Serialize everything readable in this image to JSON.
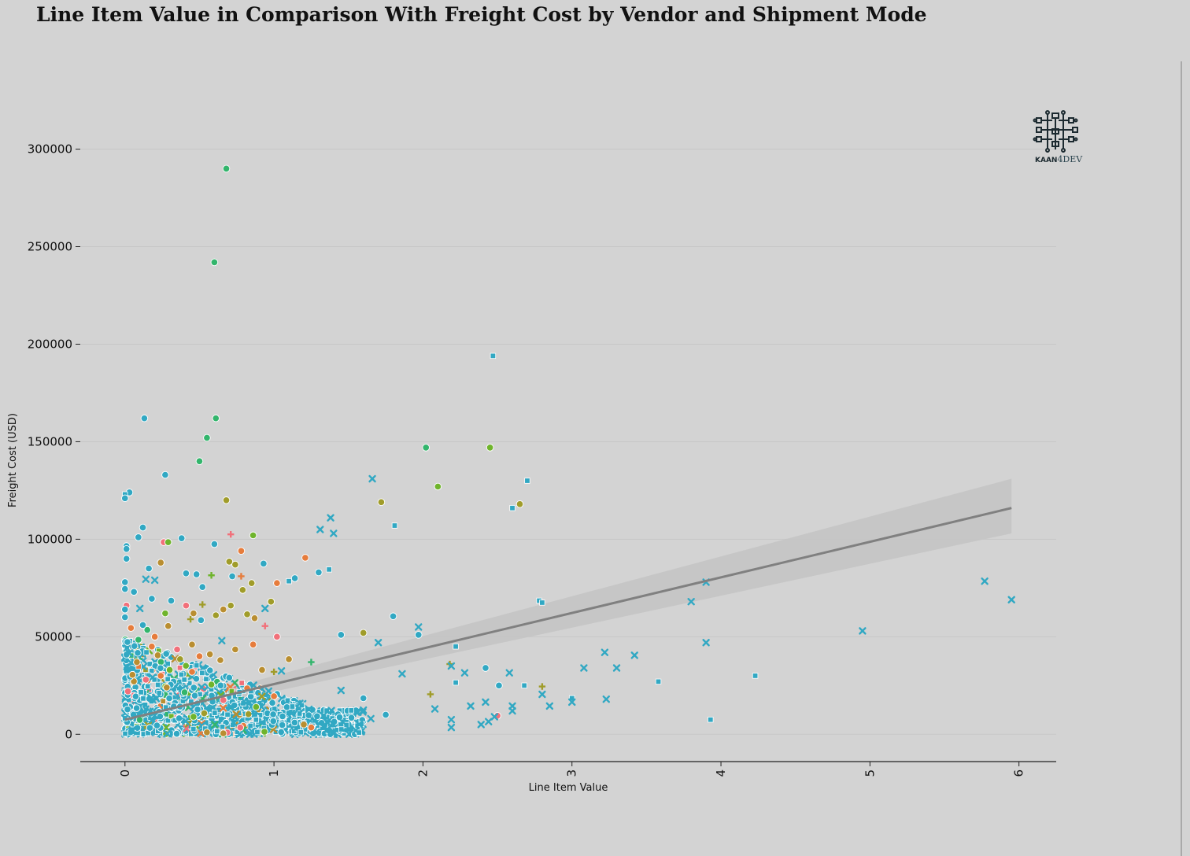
{
  "title": "Line Item Value in Comparison With Freight Cost by Vendor and Shipment Mode",
  "logo": {
    "brand_left": "KAAN",
    "brand_right": "4DEV"
  },
  "colors": {
    "background": "#d3d3d3",
    "grid": "#c7c7c7",
    "regression_line": "#808080",
    "confidence_band": "#c4c4c4",
    "palette": [
      "#31a8c3",
      "#33b56c",
      "#6fb42c",
      "#a09c2a",
      "#b98e31",
      "#e67c3c",
      "#f1707a"
    ]
  },
  "chart_data": {
    "type": "scatter",
    "title": "Line Item Value in Comparison With Freight Cost by Vendor and Shipment Mode",
    "xlabel": "Line Item Value",
    "ylabel": "Freight Cost (USD)",
    "xlim": [
      -0.3,
      6.25
    ],
    "ylim": [
      -14000,
      345000
    ],
    "x_ticks": [
      0,
      1,
      2,
      3,
      4,
      5,
      6
    ],
    "y_ticks": [
      0,
      50000,
      100000,
      150000,
      200000,
      250000,
      300000
    ],
    "x_tick_labels": [
      "0",
      "1",
      "2",
      "3",
      "4",
      "5",
      "6"
    ],
    "y_tick_labels": [
      "0",
      "50000",
      "100000",
      "150000",
      "200000",
      "250000",
      "300000"
    ],
    "grid": "horizontal",
    "legend": "none",
    "regression": {
      "x": [
        0,
        5.95
      ],
      "y": [
        7500,
        116000
      ],
      "ci_low": [
        5500,
        103000
      ],
      "ci_high": [
        9500,
        131000
      ]
    },
    "points": [
      {
        "x": 0.68,
        "y": 290000,
        "m": "o",
        "c": 1
      },
      {
        "x": 0.6,
        "y": 242000,
        "m": "o",
        "c": 1
      },
      {
        "x": 2.47,
        "y": 194000,
        "m": "s",
        "c": 0
      },
      {
        "x": 0.13,
        "y": 162000,
        "m": "o",
        "c": 0
      },
      {
        "x": 0.61,
        "y": 162000,
        "m": "o",
        "c": 1
      },
      {
        "x": 0.55,
        "y": 152000,
        "m": "o",
        "c": 1
      },
      {
        "x": 2.02,
        "y": 147000,
        "m": "o",
        "c": 1
      },
      {
        "x": 2.45,
        "y": 147000,
        "m": "o",
        "c": 2
      },
      {
        "x": 0.5,
        "y": 140000,
        "m": "o",
        "c": 1
      },
      {
        "x": 0.27,
        "y": 133000,
        "m": "o",
        "c": 0
      },
      {
        "x": 1.66,
        "y": 131000,
        "m": "x",
        "c": 0
      },
      {
        "x": 2.7,
        "y": 130000,
        "m": "s",
        "c": 0
      },
      {
        "x": 2.1,
        "y": 127000,
        "m": "o",
        "c": 2
      },
      {
        "x": 0.03,
        "y": 124000,
        "m": "o",
        "c": 0
      },
      {
        "x": 0.0,
        "y": 123000,
        "m": "s",
        "c": 0
      },
      {
        "x": 0.0,
        "y": 121000,
        "m": "o",
        "c": 0
      },
      {
        "x": 0.68,
        "y": 120000,
        "m": "o",
        "c": 3
      },
      {
        "x": 1.72,
        "y": 119000,
        "m": "o",
        "c": 3
      },
      {
        "x": 2.65,
        "y": 118000,
        "m": "o",
        "c": 3
      },
      {
        "x": 2.6,
        "y": 116000,
        "m": "s",
        "c": 0
      },
      {
        "x": 1.38,
        "y": 111000,
        "m": "x",
        "c": 0
      },
      {
        "x": 1.81,
        "y": 107000,
        "m": "s",
        "c": 0
      },
      {
        "x": 0.12,
        "y": 106000,
        "m": "o",
        "c": 0
      },
      {
        "x": 1.31,
        "y": 105000,
        "m": "x",
        "c": 0
      },
      {
        "x": 1.4,
        "y": 103000,
        "m": "x",
        "c": 0
      },
      {
        "x": 0.71,
        "y": 102500,
        "m": "+",
        "c": 6
      },
      {
        "x": 0.86,
        "y": 102000,
        "m": "o",
        "c": 2
      },
      {
        "x": 0.09,
        "y": 101000,
        "m": "o",
        "c": 0
      },
      {
        "x": 0.38,
        "y": 100500,
        "m": "o",
        "c": 0
      },
      {
        "x": 0.26,
        "y": 98500,
        "m": "o",
        "c": 6
      },
      {
        "x": 0.29,
        "y": 98500,
        "m": "o",
        "c": 2
      },
      {
        "x": 0.6,
        "y": 97500,
        "m": "o",
        "c": 0
      },
      {
        "x": 0.01,
        "y": 96500,
        "m": "o",
        "c": 0
      },
      {
        "x": 0.01,
        "y": 95000,
        "m": "o",
        "c": 0
      },
      {
        "x": 0.78,
        "y": 94000,
        "m": "o",
        "c": 5
      },
      {
        "x": 0.01,
        "y": 90000,
        "m": "o",
        "c": 0
      },
      {
        "x": 1.21,
        "y": 90500,
        "m": "o",
        "c": 5
      },
      {
        "x": 0.24,
        "y": 88000,
        "m": "o",
        "c": 4
      },
      {
        "x": 0.7,
        "y": 88500,
        "m": "o",
        "c": 3
      },
      {
        "x": 0.74,
        "y": 87000,
        "m": "o",
        "c": 3
      },
      {
        "x": 0.93,
        "y": 87500,
        "m": "o",
        "c": 0
      },
      {
        "x": 0.16,
        "y": 85000,
        "m": "o",
        "c": 0
      },
      {
        "x": 1.37,
        "y": 84500,
        "m": "s",
        "c": 0
      },
      {
        "x": 1.3,
        "y": 83000,
        "m": "o",
        "c": 0
      },
      {
        "x": 0.41,
        "y": 82500,
        "m": "o",
        "c": 0
      },
      {
        "x": 0.48,
        "y": 82000,
        "m": "o",
        "c": 0
      },
      {
        "x": 0.58,
        "y": 81500,
        "m": "+",
        "c": 2
      },
      {
        "x": 0.78,
        "y": 81000,
        "m": "+",
        "c": 5
      },
      {
        "x": 0.72,
        "y": 81000,
        "m": "o",
        "c": 0
      },
      {
        "x": 1.14,
        "y": 80000,
        "m": "o",
        "c": 0
      },
      {
        "x": 0.2,
        "y": 79000,
        "m": "x",
        "c": 0
      },
      {
        "x": 0.14,
        "y": 79500,
        "m": "x",
        "c": 0
      },
      {
        "x": 1.1,
        "y": 78500,
        "m": "s",
        "c": 0
      },
      {
        "x": 1.02,
        "y": 77500,
        "m": "o",
        "c": 5
      },
      {
        "x": 0.85,
        "y": 77500,
        "m": "o",
        "c": 3
      },
      {
        "x": 3.9,
        "y": 78000,
        "m": "x",
        "c": 0
      },
      {
        "x": 5.77,
        "y": 78500,
        "m": "x",
        "c": 0
      },
      {
        "x": 0.0,
        "y": 78000,
        "m": "o",
        "c": 0
      },
      {
        "x": 0.52,
        "y": 75500,
        "m": "o",
        "c": 0
      },
      {
        "x": 0.0,
        "y": 74500,
        "m": "o",
        "c": 0
      },
      {
        "x": 0.79,
        "y": 74000,
        "m": "o",
        "c": 3
      },
      {
        "x": 0.06,
        "y": 73000,
        "m": "o",
        "c": 0
      },
      {
        "x": 0.18,
        "y": 69500,
        "m": "o",
        "c": 0
      },
      {
        "x": 0.31,
        "y": 68500,
        "m": "o",
        "c": 0
      },
      {
        "x": 0.98,
        "y": 68000,
        "m": "o",
        "c": 3
      },
      {
        "x": 2.78,
        "y": 68500,
        "m": "s",
        "c": 0
      },
      {
        "x": 2.8,
        "y": 67500,
        "m": "s",
        "c": 0
      },
      {
        "x": 3.8,
        "y": 68000,
        "m": "x",
        "c": 0
      },
      {
        "x": 5.95,
        "y": 69000,
        "m": "x",
        "c": 0
      },
      {
        "x": 0.41,
        "y": 66000,
        "m": "o",
        "c": 6
      },
      {
        "x": 0.01,
        "y": 66000,
        "m": "o",
        "c": 6
      },
      {
        "x": 0.71,
        "y": 66000,
        "m": "o",
        "c": 3
      },
      {
        "x": 0.52,
        "y": 66500,
        "m": "+",
        "c": 3
      },
      {
        "x": 0.1,
        "y": 64500,
        "m": "x",
        "c": 0
      },
      {
        "x": 0.66,
        "y": 64000,
        "m": "o",
        "c": 4
      },
      {
        "x": 0.0,
        "y": 64000,
        "m": "o",
        "c": 0
      },
      {
        "x": 0.94,
        "y": 64500,
        "m": "x",
        "c": 0
      },
      {
        "x": 0.27,
        "y": 62000,
        "m": "o",
        "c": 2
      },
      {
        "x": 0.46,
        "y": 62000,
        "m": "o",
        "c": 4
      },
      {
        "x": 0.61,
        "y": 61000,
        "m": "o",
        "c": 3
      },
      {
        "x": 0.82,
        "y": 61500,
        "m": "o",
        "c": 3
      },
      {
        "x": 1.8,
        "y": 60500,
        "m": "o",
        "c": 0
      },
      {
        "x": 0.0,
        "y": 60000,
        "m": "o",
        "c": 0
      },
      {
        "x": 0.44,
        "y": 59000,
        "m": "+",
        "c": 3
      },
      {
        "x": 0.51,
        "y": 58500,
        "m": "o",
        "c": 0
      },
      {
        "x": 0.87,
        "y": 59500,
        "m": "o",
        "c": 4
      },
      {
        "x": 0.12,
        "y": 56000,
        "m": "o",
        "c": 0
      },
      {
        "x": 0.29,
        "y": 55500,
        "m": "o",
        "c": 4
      },
      {
        "x": 0.94,
        "y": 55500,
        "m": "+",
        "c": 6
      },
      {
        "x": 0.04,
        "y": 54500,
        "m": "o",
        "c": 5
      },
      {
        "x": 1.97,
        "y": 55000,
        "m": "x",
        "c": 0
      },
      {
        "x": 0.15,
        "y": 53500,
        "m": "o",
        "c": 1
      },
      {
        "x": 4.95,
        "y": 53000,
        "m": "x",
        "c": 0
      },
      {
        "x": 1.6,
        "y": 52000,
        "m": "o",
        "c": 3
      },
      {
        "x": 1.45,
        "y": 51000,
        "m": "o",
        "c": 0
      },
      {
        "x": 1.97,
        "y": 51000,
        "m": "o",
        "c": 0
      },
      {
        "x": 0.2,
        "y": 50000,
        "m": "o",
        "c": 5
      },
      {
        "x": 1.02,
        "y": 50000,
        "m": "o",
        "c": 6
      },
      {
        "x": 0.09,
        "y": 48500,
        "m": "o",
        "c": 1
      },
      {
        "x": 0.65,
        "y": 48000,
        "m": "x",
        "c": 0
      },
      {
        "x": 3.9,
        "y": 47000,
        "m": "x",
        "c": 0
      },
      {
        "x": 1.7,
        "y": 47000,
        "m": "x",
        "c": 0
      },
      {
        "x": 0.45,
        "y": 46000,
        "m": "o",
        "c": 4
      },
      {
        "x": 0.86,
        "y": 46000,
        "m": "o",
        "c": 5
      },
      {
        "x": 2.22,
        "y": 45000,
        "m": "s",
        "c": 0
      },
      {
        "x": 0.18,
        "y": 45000,
        "m": "o",
        "c": 5
      },
      {
        "x": 0.35,
        "y": 43500,
        "m": "o",
        "c": 6
      },
      {
        "x": 0.74,
        "y": 43500,
        "m": "o",
        "c": 4
      },
      {
        "x": 3.22,
        "y": 42000,
        "m": "x",
        "c": 0
      },
      {
        "x": 0.57,
        "y": 41000,
        "m": "o",
        "c": 4
      },
      {
        "x": 0.22,
        "y": 40500,
        "m": "o",
        "c": 4
      },
      {
        "x": 0.5,
        "y": 40000,
        "m": "o",
        "c": 5
      },
      {
        "x": 3.42,
        "y": 40500,
        "m": "x",
        "c": 0
      },
      {
        "x": 0.37,
        "y": 38500,
        "m": "o",
        "c": 3
      },
      {
        "x": 1.1,
        "y": 38500,
        "m": "o",
        "c": 4
      },
      {
        "x": 0.64,
        "y": 38000,
        "m": "o",
        "c": 4
      },
      {
        "x": 1.25,
        "y": 37000,
        "m": "+",
        "c": 1
      },
      {
        "x": 0.08,
        "y": 37000,
        "m": "o",
        "c": 4
      },
      {
        "x": 2.18,
        "y": 36000,
        "m": "+",
        "c": 3
      },
      {
        "x": 2.19,
        "y": 35000,
        "m": "x",
        "c": 0
      },
      {
        "x": 2.42,
        "y": 34000,
        "m": "o",
        "c": 0
      },
      {
        "x": 3.08,
        "y": 34000,
        "m": "x",
        "c": 0
      },
      {
        "x": 3.3,
        "y": 34000,
        "m": "x",
        "c": 0
      },
      {
        "x": 0.3,
        "y": 33000,
        "m": "o",
        "c": 2
      },
      {
        "x": 0.92,
        "y": 33000,
        "m": "o",
        "c": 4
      },
      {
        "x": 1.05,
        "y": 32500,
        "m": "x",
        "c": 0
      },
      {
        "x": 0.45,
        "y": 32000,
        "m": "o",
        "c": 5
      },
      {
        "x": 1.0,
        "y": 32000,
        "m": "+",
        "c": 3
      },
      {
        "x": 2.28,
        "y": 31500,
        "m": "x",
        "c": 0
      },
      {
        "x": 2.58,
        "y": 31500,
        "m": "x",
        "c": 0
      },
      {
        "x": 1.86,
        "y": 31000,
        "m": "x",
        "c": 0
      },
      {
        "x": 0.05,
        "y": 30500,
        "m": "o",
        "c": 4
      },
      {
        "x": 0.24,
        "y": 30000,
        "m": "o",
        "c": 5
      },
      {
        "x": 4.23,
        "y": 30000,
        "m": "s",
        "c": 0
      },
      {
        "x": 0.7,
        "y": 29000,
        "m": "o",
        "c": 0
      },
      {
        "x": 0.14,
        "y": 28000,
        "m": "o",
        "c": 6
      },
      {
        "x": 3.58,
        "y": 27000,
        "m": "s",
        "c": 0
      },
      {
        "x": 2.22,
        "y": 26500,
        "m": "s",
        "c": 0
      },
      {
        "x": 0.58,
        "y": 25500,
        "m": "o",
        "c": 2
      },
      {
        "x": 2.68,
        "y": 25000,
        "m": "s",
        "c": 0
      },
      {
        "x": 2.8,
        "y": 24500,
        "m": "+",
        "c": 3
      },
      {
        "x": 2.51,
        "y": 25000,
        "m": "o",
        "c": 0
      },
      {
        "x": 0.28,
        "y": 24000,
        "m": "o",
        "c": 4
      },
      {
        "x": 0.82,
        "y": 23500,
        "m": "o",
        "c": 5
      },
      {
        "x": 1.45,
        "y": 22500,
        "m": "x",
        "c": 0
      },
      {
        "x": 0.02,
        "y": 22000,
        "m": "o",
        "c": 6
      },
      {
        "x": 0.4,
        "y": 21500,
        "m": "o",
        "c": 1
      },
      {
        "x": 2.05,
        "y": 20500,
        "m": "+",
        "c": 3
      },
      {
        "x": 2.8,
        "y": 20500,
        "m": "x",
        "c": 0
      },
      {
        "x": 1.0,
        "y": 19500,
        "m": "o",
        "c": 5
      },
      {
        "x": 1.6,
        "y": 18500,
        "m": "o",
        "c": 0
      },
      {
        "x": 3.0,
        "y": 18500,
        "m": "s",
        "c": 0
      },
      {
        "x": 3.23,
        "y": 18000,
        "m": "x",
        "c": 0
      },
      {
        "x": 0.66,
        "y": 17500,
        "m": "o",
        "c": 6
      },
      {
        "x": 3.0,
        "y": 16500,
        "m": "x",
        "c": 0
      },
      {
        "x": 2.42,
        "y": 16500,
        "m": "x",
        "c": 0
      },
      {
        "x": 2.32,
        "y": 14500,
        "m": "x",
        "c": 0
      },
      {
        "x": 2.6,
        "y": 14500,
        "m": "x",
        "c": 0
      },
      {
        "x": 2.85,
        "y": 14500,
        "m": "x",
        "c": 0
      },
      {
        "x": 0.88,
        "y": 14000,
        "m": "o",
        "c": 2
      },
      {
        "x": 2.08,
        "y": 13000,
        "m": "x",
        "c": 0
      },
      {
        "x": 2.6,
        "y": 12000,
        "m": "x",
        "c": 0
      },
      {
        "x": 1.75,
        "y": 10000,
        "m": "o",
        "c": 0
      },
      {
        "x": 2.5,
        "y": 9500,
        "m": "o",
        "c": 6
      },
      {
        "x": 2.48,
        "y": 9000,
        "m": "x",
        "c": 0
      },
      {
        "x": 0.46,
        "y": 9000,
        "m": "o",
        "c": 2
      },
      {
        "x": 1.52,
        "y": 8500,
        "m": "o",
        "c": 0
      },
      {
        "x": 1.65,
        "y": 8000,
        "m": "x",
        "c": 0
      },
      {
        "x": 3.93,
        "y": 7500,
        "m": "s",
        "c": 0
      },
      {
        "x": 2.19,
        "y": 7500,
        "m": "x",
        "c": 0
      },
      {
        "x": 2.44,
        "y": 6500,
        "m": "x",
        "c": 0
      },
      {
        "x": 1.46,
        "y": 6500,
        "m": "x",
        "c": 0
      },
      {
        "x": 1.2,
        "y": 5000,
        "m": "o",
        "c": 4
      },
      {
        "x": 2.39,
        "y": 5000,
        "m": "x",
        "c": 0
      },
      {
        "x": 1.25,
        "y": 3500,
        "m": "o",
        "c": 5
      },
      {
        "x": 2.19,
        "y": 3500,
        "m": "x",
        "c": 0
      },
      {
        "x": 1.36,
        "y": 2500,
        "m": "x",
        "c": 0
      },
      {
        "x": 0.55,
        "y": 1000,
        "m": "o",
        "c": 4
      },
      {
        "x": 0.66,
        "y": 500,
        "m": "o",
        "c": 4
      },
      {
        "x": 0.85,
        "y": 1500,
        "m": "x",
        "c": 0
      }
    ],
    "dense_cluster": {
      "x_range": [
        0,
        1.6
      ],
      "y_range": [
        0,
        50000
      ],
      "count": 1200,
      "seed": 7
    }
  }
}
